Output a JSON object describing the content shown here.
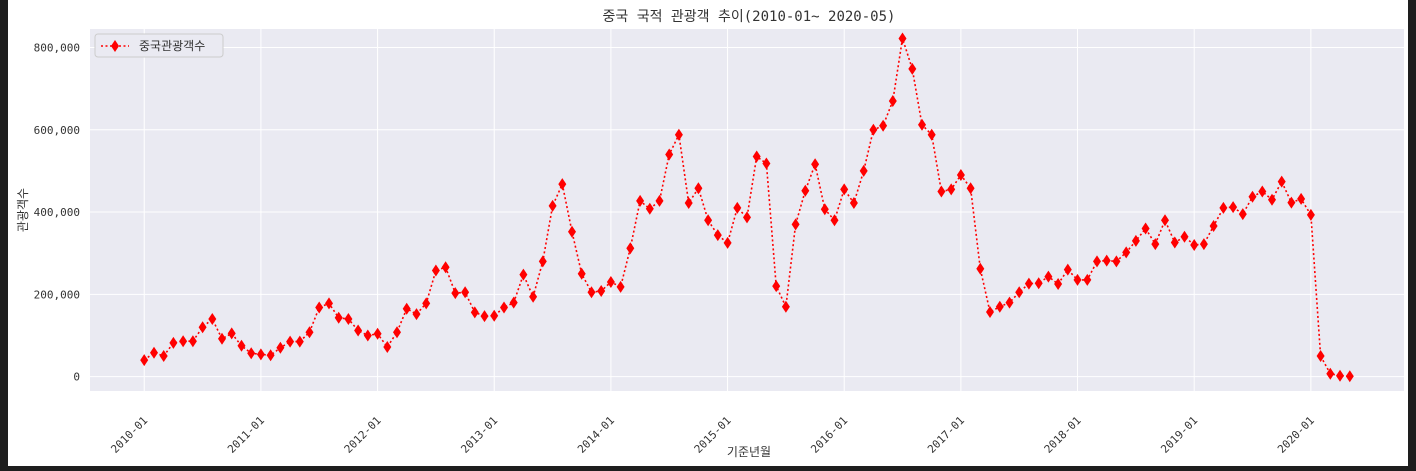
{
  "chart_data": {
    "type": "line",
    "title": "중국 국적 관광객 추이(2010-01~ 2020-05)",
    "xlabel": "기준년월",
    "ylabel": "관광객수",
    "ylim": [
      -35000,
      845000
    ],
    "yticks": [
      0,
      200000,
      400000,
      600000,
      800000
    ],
    "ytick_labels": [
      "0",
      "200,000",
      "400,000",
      "600,000",
      "800,000"
    ],
    "xticks": [
      "2010-01",
      "2011-01",
      "2012-01",
      "2013-01",
      "2014-01",
      "2015-01",
      "2016-01",
      "2017-01",
      "2018-01",
      "2019-01",
      "2020-01"
    ],
    "grid": true,
    "legend_position": "top-left",
    "series": [
      {
        "name": "중국관광객수",
        "color": "#ff0000",
        "line_style": "dotted",
        "marker": "diamond",
        "x_start": "2010-01",
        "x_end": "2020-05",
        "values": [
          40000,
          58000,
          50000,
          82000,
          86000,
          86000,
          120000,
          140000,
          92000,
          105000,
          75000,
          57000,
          54000,
          52000,
          70000,
          85000,
          85000,
          108000,
          168000,
          178000,
          143000,
          140000,
          112000,
          100000,
          104000,
          72000,
          108000,
          165000,
          152000,
          178000,
          258000,
          266000,
          203000,
          205000,
          156000,
          147000,
          148000,
          168000,
          180000,
          248000,
          194000,
          280000,
          415000,
          468000,
          352000,
          250000,
          205000,
          208000,
          230000,
          218000,
          312000,
          427000,
          408000,
          427000,
          540000,
          588000,
          422000,
          458000,
          380000,
          344000,
          325000,
          410000,
          387000,
          535000,
          518000,
          220000,
          170000,
          370000,
          452000,
          516000,
          407000,
          380000,
          455000,
          422000,
          500000,
          600000,
          610000,
          670000,
          822000,
          748000,
          612000,
          588000,
          450000,
          455000,
          490000,
          458000,
          262000,
          157000,
          170000,
          180000,
          205000,
          226000,
          227000,
          243000,
          225000,
          260000,
          235000,
          235000,
          280000,
          282000,
          280000,
          302000,
          330000,
          360000,
          322000,
          380000,
          326000,
          340000,
          320000,
          322000,
          366000,
          410000,
          412000,
          395000,
          437000,
          450000,
          430000,
          474000,
          423000,
          432000,
          393000,
          50000,
          7000,
          2000,
          1000
        ]
      }
    ]
  }
}
